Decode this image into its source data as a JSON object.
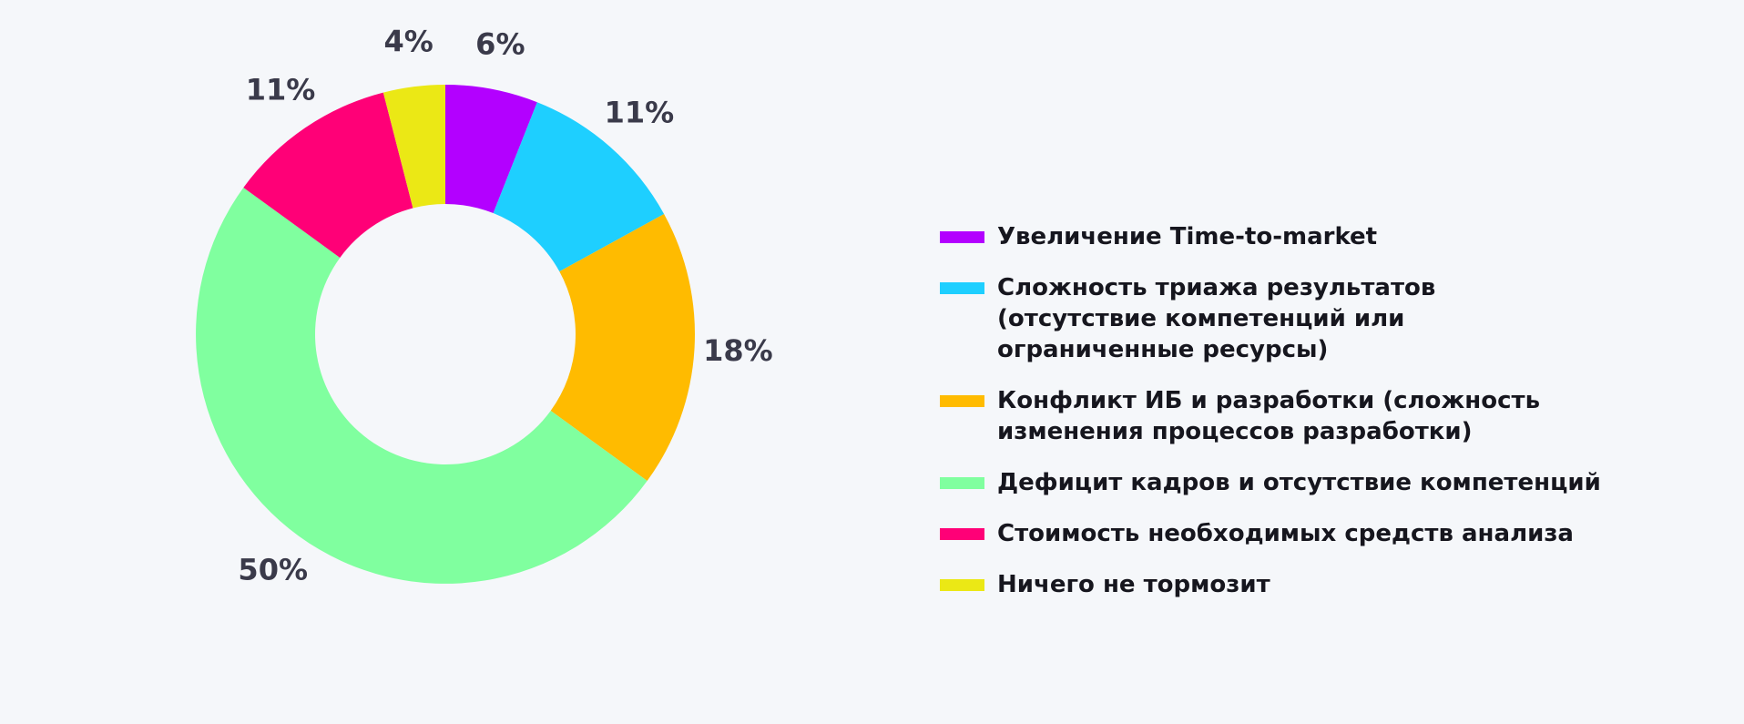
{
  "chart_data": {
    "type": "donut",
    "series": [
      {
        "name": "Увеличение Time-to-market",
        "color": "#b300ff",
        "values": [
          6
        ],
        "value_labels": [
          "6%"
        ]
      },
      {
        "name": "Сложность триажа результатов (отсутствие компетенций или ограниченные ресурсы)",
        "color": "#1ecfff",
        "values": [
          11
        ],
        "value_labels": [
          "11%"
        ]
      },
      {
        "name": "Конфликт ИБ и разработки (сложность изменения процессов разработки)",
        "color": "#ffbb00",
        "values": [
          18
        ],
        "value_labels": [
          "18%"
        ]
      },
      {
        "name": "Дефицит кадров и отсутствие компетенций",
        "color": "#80ff9f",
        "values": [
          50
        ],
        "value_labels": [
          "50%"
        ]
      },
      {
        "name": "Стоимость необходимых средств анализа",
        "color": "#ff0077",
        "values": [
          11
        ],
        "value_labels": [
          "11%"
        ]
      },
      {
        "name": "Ничего не тормозит",
        "color": "#ebe815",
        "values": [
          4
        ],
        "value_labels": [
          "4%"
        ]
      }
    ]
  }
}
